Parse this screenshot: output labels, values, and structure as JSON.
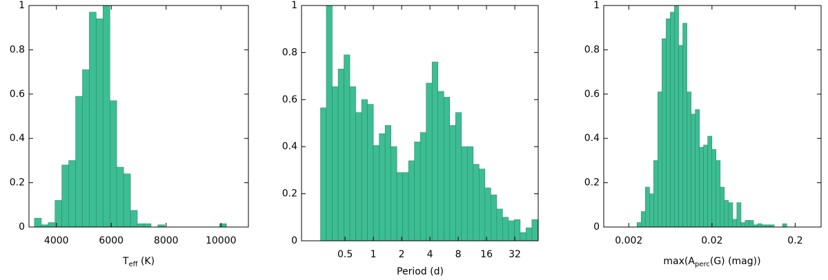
{
  "chart_data": [
    {
      "type": "histogram",
      "color": "#3dbd93",
      "edge_color": "#2a8a68",
      "log_x": false,
      "xlim": [
        3000,
        11000
      ],
      "ylim": [
        0,
        1
      ],
      "xticks": [
        4000,
        6000,
        8000,
        10000
      ],
      "yticks": [
        0,
        0.2,
        0.4,
        0.6,
        0.8,
        1
      ],
      "xlabel": {
        "main": "T",
        "sub": "eff",
        "suffix": " (K)"
      },
      "bins": [
        3200,
        3450,
        3700,
        3950,
        4200,
        4450,
        4700,
        4950,
        5200,
        5450,
        5700,
        5950,
        6200,
        6450,
        6700,
        6950,
        7200,
        7450,
        7700,
        7950,
        8200,
        8450,
        8700,
        8950,
        9200,
        9450,
        9700,
        9950,
        10200,
        10450
      ],
      "counts": [
        0.04,
        0.01,
        0.02,
        0.12,
        0.28,
        0.3,
        0.59,
        0.71,
        0.97,
        0.94,
        1.0,
        0.57,
        0.27,
        0.24,
        0.075,
        0.015,
        0.015,
        0,
        0.01,
        0,
        0,
        0,
        0,
        0,
        0,
        0,
        0,
        0.015,
        0
      ]
    },
    {
      "type": "histogram",
      "color": "#3dbd93",
      "edge_color": "#2a8a68",
      "log_x": true,
      "xlim": [
        0.172,
        56.8
      ],
      "ylim": [
        0,
        1
      ],
      "xticks": [
        0.5,
        1,
        2,
        4,
        8,
        16,
        32
      ],
      "yticks": [
        0,
        0.2,
        0.4,
        0.6,
        0.8,
        1
      ],
      "xlabel": {
        "main": "Period (d)"
      },
      "bins": [
        0.274,
        0.316,
        0.365,
        0.422,
        0.487,
        0.562,
        0.649,
        0.75,
        0.866,
        1,
        1.155,
        1.334,
        1.54,
        1.778,
        2.054,
        2.371,
        2.738,
        3.162,
        3.652,
        4.217,
        4.87,
        5.623,
        6.494,
        7.499,
        8.66,
        10,
        11.55,
        13.34,
        15.4,
        17.78,
        20.54,
        23.71,
        27.38,
        31.62,
        36.52,
        42.17,
        48.7,
        56.23
      ],
      "counts": [
        0.565,
        1.0,
        0.655,
        0.73,
        0.79,
        0.655,
        0.545,
        0.6,
        0.58,
        0.405,
        0.455,
        0.49,
        0.4,
        0.29,
        0.29,
        0.34,
        0.42,
        0.46,
        0.67,
        0.76,
        0.635,
        0.61,
        0.49,
        0.545,
        0.4,
        0.4,
        0.325,
        0.305,
        0.225,
        0.195,
        0.135,
        0.1,
        0.085,
        0.09,
        0.035,
        0.055,
        0.09
      ]
    },
    {
      "type": "histogram",
      "color": "#3dbd93",
      "edge_color": "#2a8a68",
      "log_x": true,
      "xlim": [
        0.001,
        0.41
      ],
      "ylim": [
        0,
        1
      ],
      "xticks": [
        0.002,
        0.02,
        0.2
      ],
      "yticks": [
        0,
        0.2,
        0.4,
        0.6,
        0.8,
        1
      ],
      "xlabel": {
        "main": "max(A",
        "sub": "perc",
        "suffix": "(G) (mag))"
      },
      "bins": [
        0.002512,
        0.002818,
        0.003162,
        0.003548,
        0.003981,
        0.004467,
        0.005012,
        0.005623,
        0.00631,
        0.007079,
        0.007943,
        0.008913,
        0.01,
        0.01122,
        0.01259,
        0.01413,
        0.01585,
        0.01778,
        0.01995,
        0.02239,
        0.02512,
        0.02818,
        0.03162,
        0.03548,
        0.03981,
        0.04467,
        0.05012,
        0.05623,
        0.0631,
        0.07079,
        0.07943,
        0.08913,
        0.1,
        0.1122,
        0.1259,
        0.1413,
        0.1585
      ],
      "counts": [
        0.02,
        0.07,
        0.18,
        0.15,
        0.3,
        0.61,
        0.85,
        0.94,
        0.97,
        1.0,
        0.82,
        0.92,
        0.61,
        0.51,
        0.53,
        0.36,
        0.37,
        0.41,
        0.35,
        0.3,
        0.18,
        0.12,
        0.11,
        0.035,
        0.11,
        0.02,
        0.03,
        0.03,
        0.01,
        0.015,
        0.01,
        0.01,
        0.01,
        0,
        0,
        0.015
      ]
    }
  ]
}
